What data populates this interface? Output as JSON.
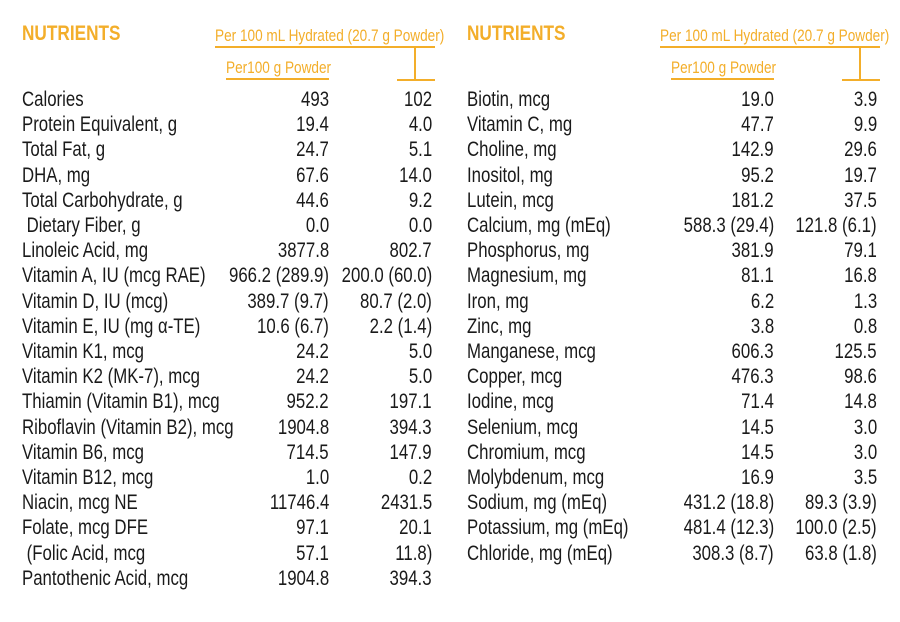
{
  "accent_color": "#f3ae2a",
  "tables": [
    {
      "title": "NUTRIENTS",
      "col_hydrated": "Per 100 mL Hydrated (20.7 g Powder)",
      "col_powder": "Per100 g  Powder",
      "rows": [
        {
          "label": "Calories",
          "powder": "493",
          "hydrated": "102"
        },
        {
          "label": "Protein Equivalent, g",
          "powder": "19.4",
          "hydrated": "4.0"
        },
        {
          "label": "Total Fat, g",
          "powder": "24.7",
          "hydrated": "5.1"
        },
        {
          "label": "DHA, mg",
          "powder": "67.6",
          "hydrated": "14.0"
        },
        {
          "label": "Total Carbohydrate, g",
          "powder": "44.6",
          "hydrated": "9.2"
        },
        {
          "label": " Dietary Fiber, g",
          "powder": "0.0",
          "hydrated": "0.0"
        },
        {
          "label": "Linoleic Acid, mg",
          "powder": "3877.8",
          "hydrated": "802.7"
        },
        {
          "label": "Vitamin A, IU (mcg RAE)",
          "powder": "966.2 (289.9)",
          "hydrated": "200.0 (60.0)"
        },
        {
          "label": "Vitamin D, IU (mcg)",
          "powder": "389.7 (9.7)",
          "hydrated": "80.7 (2.0)"
        },
        {
          "label": "Vitamin E, IU (mg α-TE)",
          "powder": "10.6 (6.7)",
          "hydrated": "2.2 (1.4)"
        },
        {
          "label": "Vitamin K1, mcg",
          "powder": "24.2",
          "hydrated": "5.0"
        },
        {
          "label": "Vitamin K2 (MK-7), mcg",
          "powder": "24.2",
          "hydrated": "5.0"
        },
        {
          "label": "Thiamin (Vitamin B1), mcg",
          "powder": "952.2",
          "hydrated": "197.1"
        },
        {
          "label": "Riboflavin (Vitamin B2), mcg",
          "powder": "1904.8",
          "hydrated": "394.3"
        },
        {
          "label": "Vitamin B6, mcg",
          "powder": "714.5",
          "hydrated": "147.9"
        },
        {
          "label": "Vitamin B12, mcg",
          "powder": "1.0",
          "hydrated": "0.2"
        },
        {
          "label": "Niacin, mcg NE",
          "powder": "11746.4",
          "hydrated": "2431.5"
        },
        {
          "label": "Folate, mcg DFE",
          "powder": "97.1",
          "hydrated": "20.1"
        },
        {
          "label": " (Folic Acid, mcg",
          "powder": "57.1",
          "hydrated": "11.8)"
        },
        {
          "label": "Pantothenic Acid, mcg",
          "powder": "1904.8",
          "hydrated": "394.3"
        }
      ]
    },
    {
      "title": "NUTRIENTS",
      "col_hydrated": "Per 100 mL Hydrated (20.7 g Powder)",
      "col_powder": "Per100 g  Powder",
      "rows": [
        {
          "label": "Biotin, mcg",
          "powder": "19.0",
          "hydrated": "3.9"
        },
        {
          "label": "Vitamin C, mg",
          "powder": "47.7",
          "hydrated": "9.9"
        },
        {
          "label": "Choline, mg",
          "powder": "142.9",
          "hydrated": "29.6"
        },
        {
          "label": "Inositol, mg",
          "powder": "95.2",
          "hydrated": "19.7"
        },
        {
          "label": "Lutein, mcg",
          "powder": "181.2",
          "hydrated": "37.5"
        },
        {
          "label": "Calcium, mg (mEq)",
          "powder": "588.3 (29.4)",
          "hydrated": "121.8 (6.1)"
        },
        {
          "label": "Phosphorus, mg",
          "powder": "381.9",
          "hydrated": "79.1"
        },
        {
          "label": "Magnesium, mg",
          "powder": "81.1",
          "hydrated": "16.8"
        },
        {
          "label": "Iron, mg",
          "powder": "6.2",
          "hydrated": "1.3"
        },
        {
          "label": "Zinc, mg",
          "powder": "3.8",
          "hydrated": "0.8"
        },
        {
          "label": "Manganese, mcg",
          "powder": "606.3",
          "hydrated": "125.5"
        },
        {
          "label": "Copper, mcg",
          "powder": "476.3",
          "hydrated": "98.6"
        },
        {
          "label": "Iodine, mcg",
          "powder": "71.4",
          "hydrated": "14.8"
        },
        {
          "label": "Selenium, mcg",
          "powder": "14.5",
          "hydrated": "3.0"
        },
        {
          "label": "Chromium, mcg",
          "powder": "14.5",
          "hydrated": "3.0"
        },
        {
          "label": "Molybdenum, mcg",
          "powder": "16.9",
          "hydrated": "3.5"
        },
        {
          "label": "Sodium, mg (mEq)",
          "powder": "431.2 (18.8)",
          "hydrated": "89.3 (3.9)"
        },
        {
          "label": "Potassium, mg (mEq)",
          "powder": "481.4 (12.3)",
          "hydrated": "100.0 (2.5)"
        },
        {
          "label": "Chloride, mg (mEq)",
          "powder": "308.3 (8.7)",
          "hydrated": "63.8 (1.8)"
        }
      ]
    }
  ]
}
